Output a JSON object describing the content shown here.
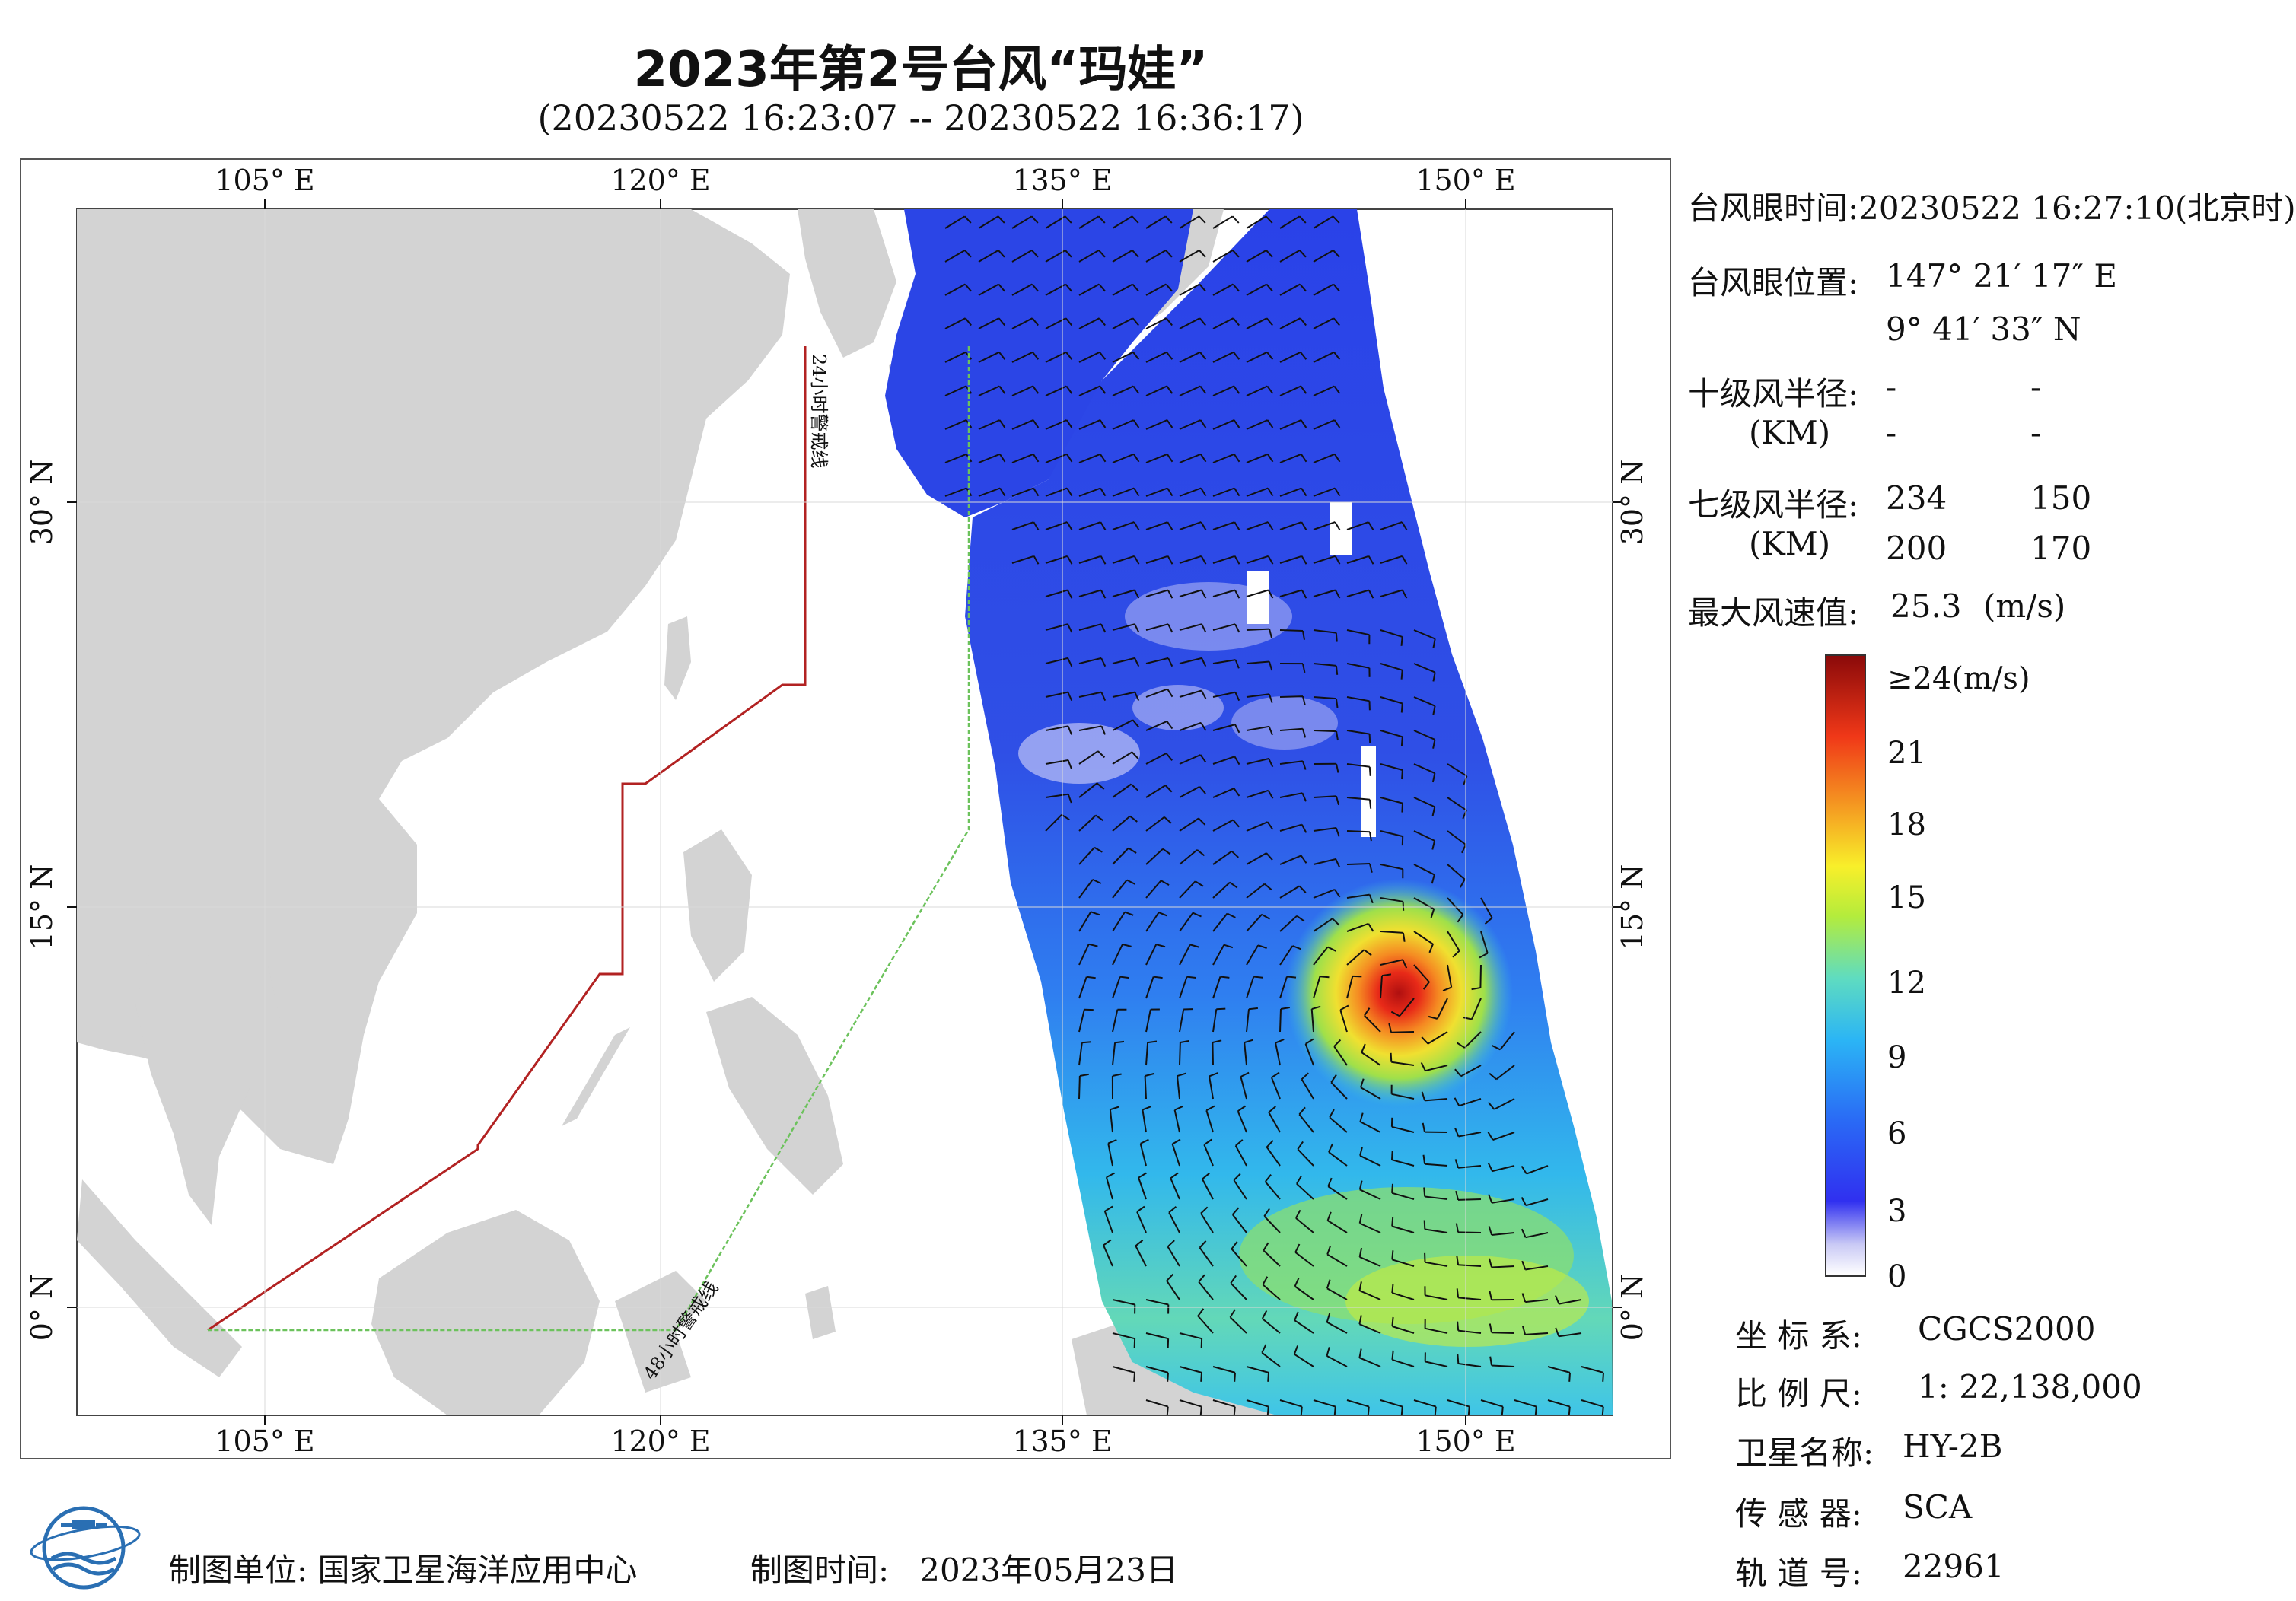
{
  "title": "2023年第2号台风“玛娃”",
  "subtitle": "(20230522 16:23:07 -- 20230522 16:36:17)",
  "map": {
    "lon_ticks": [
      "105° E",
      "120° E",
      "135° E",
      "150° E"
    ],
    "lat_ticks": [
      "30° N",
      "15° N",
      "0° N"
    ],
    "warning_24h": "24小时警戒线",
    "warning_48h": "48小时警戒线",
    "colors": {
      "land": "#d3d3d3",
      "sea": "#ffffff",
      "line_24h": "#b22222",
      "line_48h": "#5cb85c"
    }
  },
  "info": {
    "eye_time_label": "台风眼时间:",
    "eye_time_value": "20230522 16:27:10(北京时)",
    "eye_pos_label": "台风眼位置:",
    "eye_lon": "147° 21′ 17″ E",
    "eye_lat": "9° 41′ 33″ N",
    "r10_label": "十级风半径:",
    "r10_unit": "(KM)",
    "r10_values": [
      "-",
      "-",
      "-",
      "-"
    ],
    "r7_label": "七级风半径:",
    "r7_unit": "(KM)",
    "r7_values": [
      "234",
      "150",
      "200",
      "170"
    ],
    "max_wind_label": "最大风速值:",
    "max_wind_value": "25.3",
    "max_wind_unit": "(m/s)"
  },
  "colorbar": {
    "labels": [
      "≥24(m/s)",
      "21",
      "18",
      "15",
      "12",
      "9",
      "6",
      "3",
      "0"
    ]
  },
  "metadata": {
    "crs_label": "坐 标 系:",
    "crs_value": "CGCS2000",
    "scale_label": "比 例 尺:",
    "scale_value": "1: 22,138,000",
    "satellite_label": "卫星名称:",
    "satellite_value": "HY-2B",
    "sensor_label": "传 感 器:",
    "sensor_value": "SCA",
    "orbit_label": "轨 道 号:",
    "orbit_value": "22961"
  },
  "footer": {
    "unit_label": "制图单位:",
    "unit_value": "国家卫星海洋应用中心",
    "time_label": "制图时间:",
    "time_value": "2023年05月23日"
  }
}
